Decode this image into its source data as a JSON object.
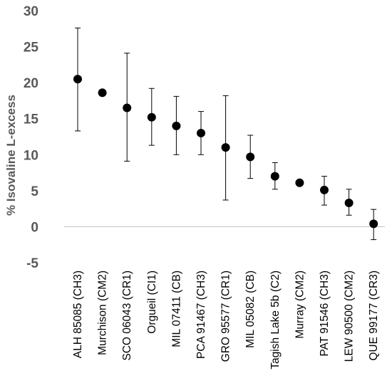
{
  "chart_data": {
    "type": "scatter",
    "title": "",
    "xlabel": "",
    "ylabel": "% Isovaline L-excess",
    "ylim": [
      -5,
      30
    ],
    "yticks": [
      30,
      25,
      20,
      15,
      10,
      5,
      0,
      -5
    ],
    "grid": false,
    "colors": {
      "marker": "#000000",
      "zero_line": "#bfbfbf",
      "tick_text": "#595959"
    },
    "categories": [
      "ALH 85085 (CH3)",
      "Murchison (CM2)",
      "SCO 06043 (CR1)",
      "Orgueil (CI1)",
      "MIL 07411 (CB)",
      "PCA 91467 (CH3)",
      "GRO 95577 (CR1)",
      "MIL 05082 (CB)",
      "Tagish Lake 5b (C2)",
      "Murray (CM2)",
      "PAT 91546 (CH3)",
      "LEW 90500 (CM2)",
      "QUE 99177 (CR3)"
    ],
    "values": [
      20.5,
      18.6,
      16.5,
      15.2,
      14.0,
      13.0,
      11.0,
      9.7,
      7.0,
      6.1,
      5.1,
      3.3,
      0.4
    ],
    "error_low": [
      13.3,
      null,
      9.1,
      11.3,
      10.0,
      10.0,
      3.7,
      6.7,
      5.2,
      null,
      3.0,
      1.6,
      -1.8
    ],
    "error_high": [
      27.6,
      null,
      24.1,
      19.2,
      18.1,
      16.0,
      18.2,
      12.7,
      8.9,
      null,
      7.0,
      5.2,
      2.4
    ]
  }
}
